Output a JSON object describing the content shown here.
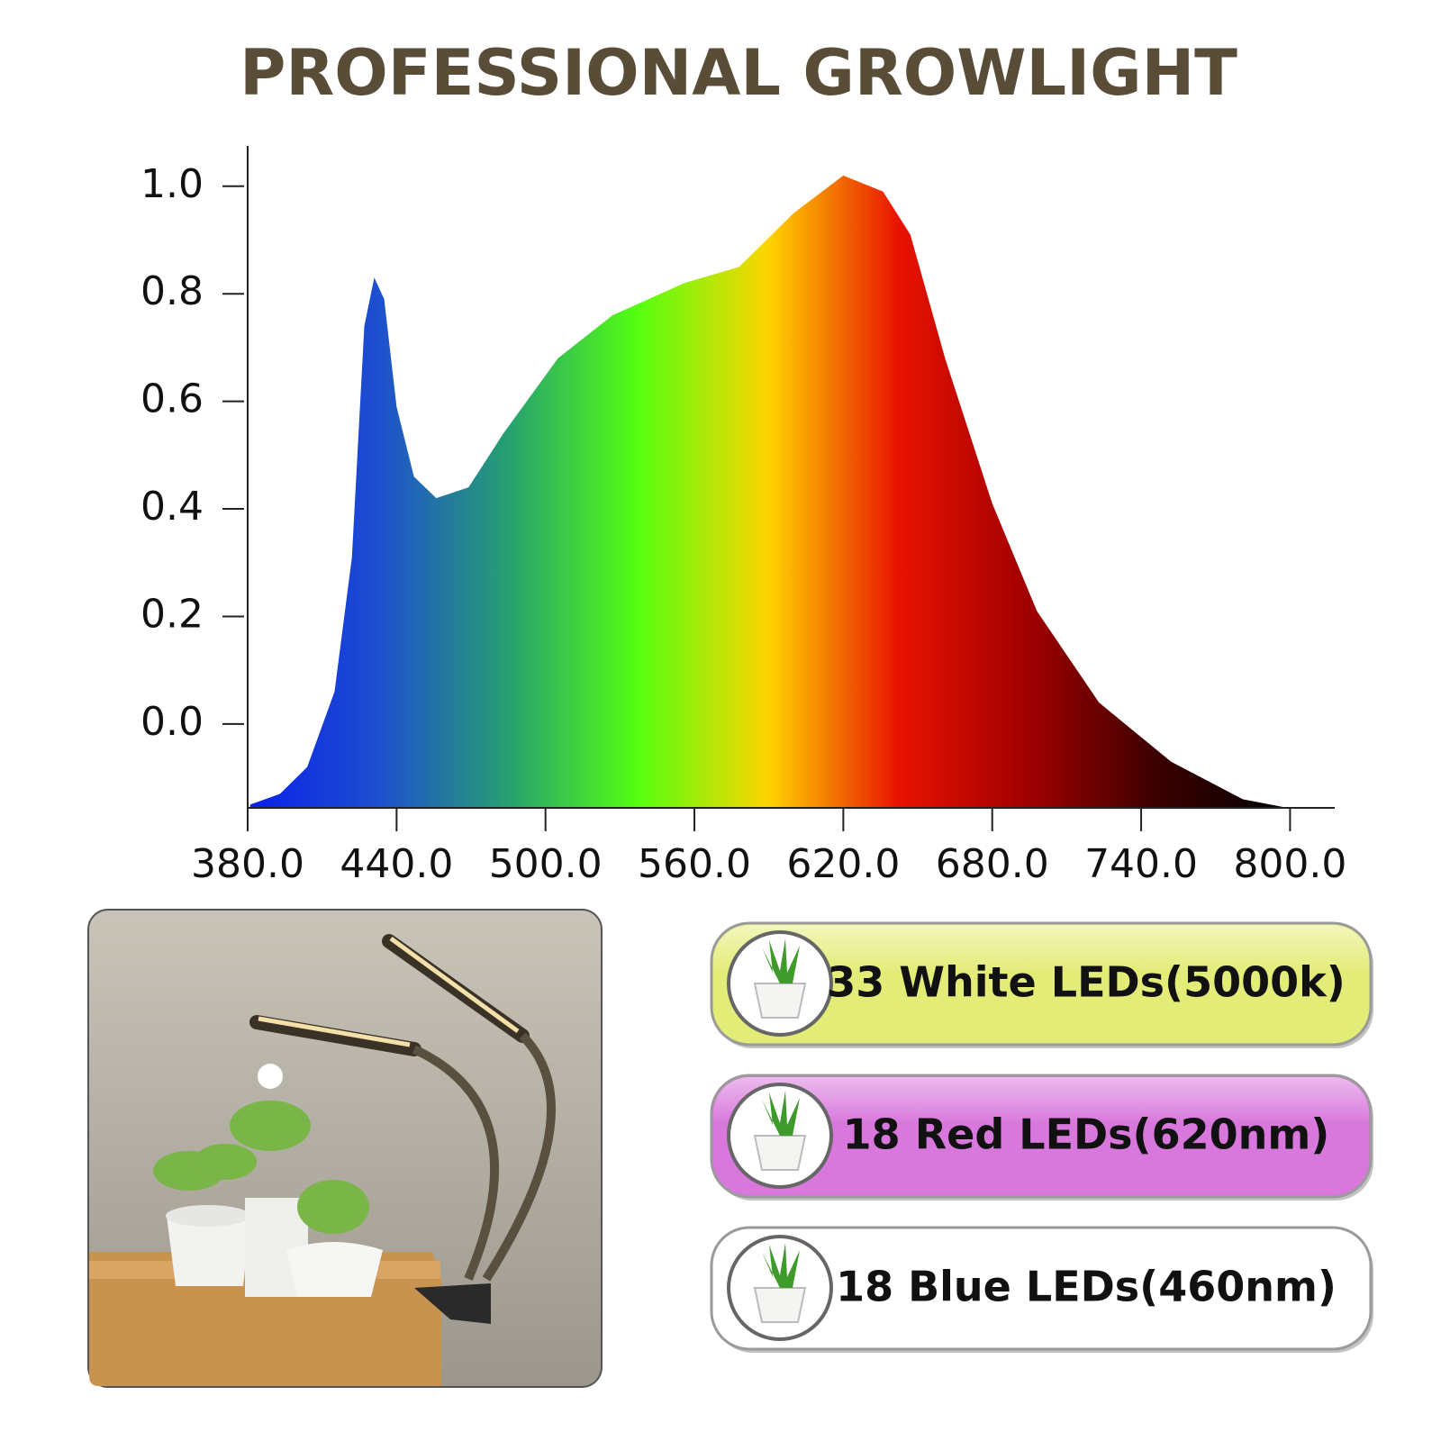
{
  "chart_data": {
    "type": "area",
    "title": "PROFESSIONAL GROWLIGHT",
    "x": [
      381,
      393,
      404,
      415,
      422,
      427,
      431,
      435,
      440,
      447,
      456,
      469,
      483,
      505,
      527,
      556,
      578,
      600,
      620,
      636,
      647,
      661,
      680,
      698,
      723,
      752,
      781,
      799
    ],
    "values": [
      -0.15,
      -0.13,
      -0.08,
      0.06,
      0.31,
      0.74,
      0.83,
      0.79,
      0.59,
      0.46,
      0.42,
      0.44,
      0.54,
      0.68,
      0.76,
      0.82,
      0.85,
      0.95,
      1.02,
      0.99,
      0.91,
      0.68,
      0.41,
      0.21,
      0.04,
      -0.07,
      -0.14,
      -0.156
    ],
    "fill_colors": [
      "#0a20e8",
      "#1e4fd0",
      "#27a070",
      "#55ff10",
      "#ffd400",
      "#e81200",
      "#a00000",
      "#3a0000",
      "#000000"
    ],
    "xlim": [
      380,
      818
    ],
    "ylim": [
      -0.156,
      1.075
    ],
    "xticks": [
      {
        "value": 380,
        "label": "380.0"
      },
      {
        "value": 440,
        "label": "440.0"
      },
      {
        "value": 500,
        "label": "500.0"
      },
      {
        "value": 560,
        "label": "560.0"
      },
      {
        "value": 620,
        "label": "620.0"
      },
      {
        "value": 680,
        "label": "680.0"
      },
      {
        "value": 740,
        "label": "740.0"
      },
      {
        "value": 800,
        "label": "800.0"
      }
    ],
    "yticks": [
      {
        "value": 0,
        "label": "0.0"
      },
      0.2,
      0.4,
      0.6,
      0.8,
      {
        "value": 1,
        "label": "1.0"
      }
    ]
  },
  "features": [
    {
      "label": "33 White LEDs(5000k)",
      "color": "#e4ec78"
    },
    {
      "label": "18 Red LEDs(620nm)",
      "color": "#d877dc"
    },
    {
      "label": "18 Blue LEDs(460nm)",
      "color": "#ffffff"
    }
  ]
}
